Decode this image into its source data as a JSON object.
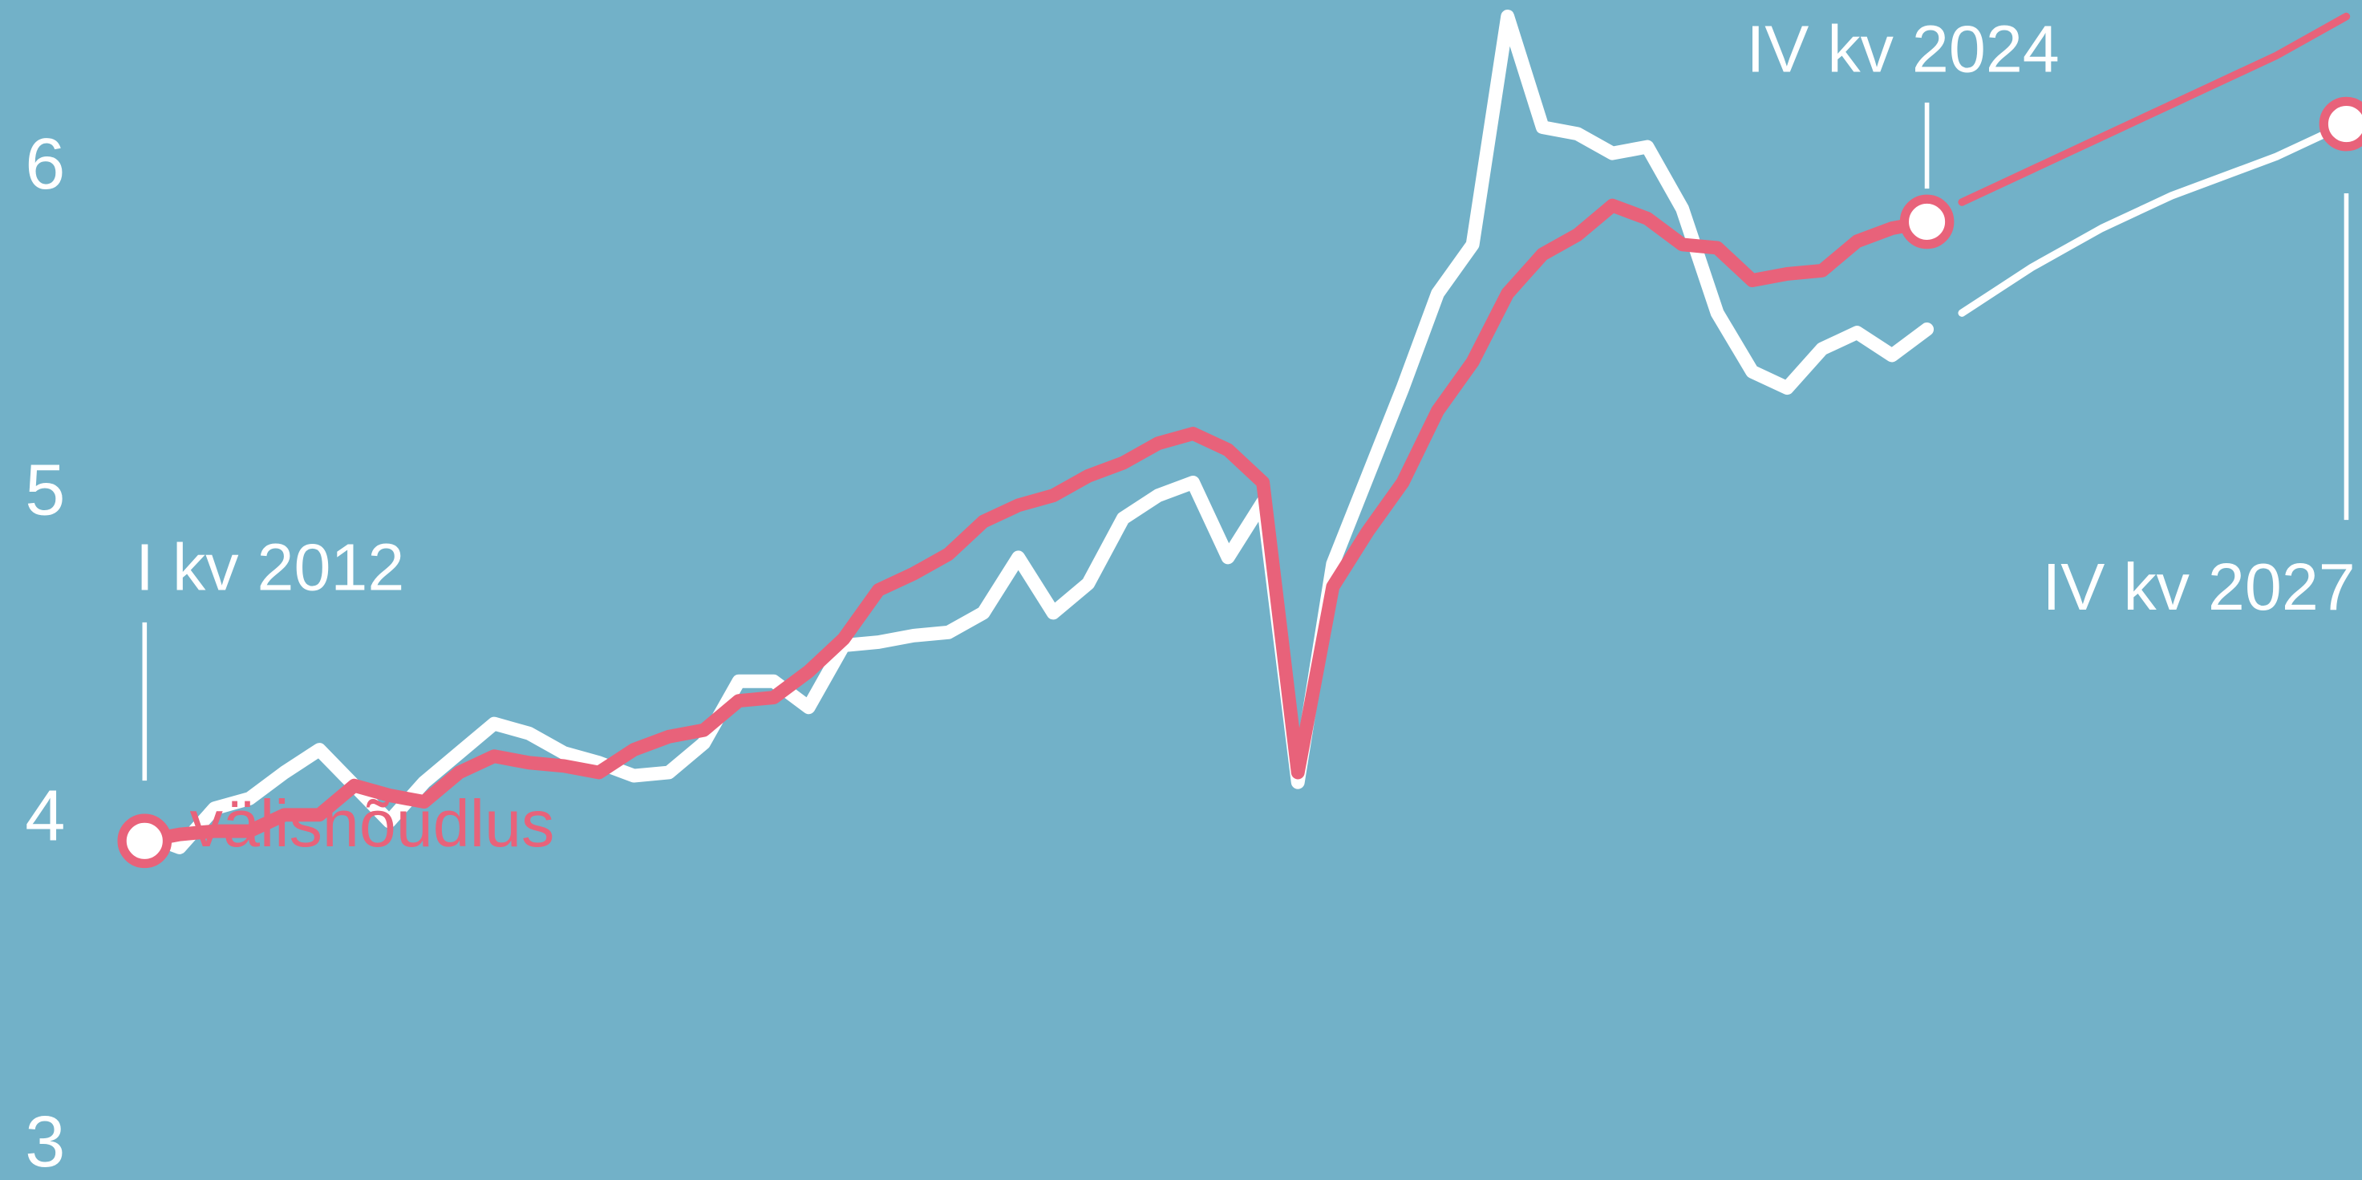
{
  "chart_data": {
    "type": "line",
    "categories": [
      "I kv 2012",
      null,
      null,
      null,
      null,
      null,
      null,
      null,
      null,
      null,
      null,
      null,
      null,
      null,
      null,
      null,
      null,
      null,
      null,
      null,
      null,
      null,
      null,
      null,
      null,
      null,
      null,
      null,
      null,
      null,
      null,
      null,
      null,
      null,
      null,
      null,
      null,
      null,
      null,
      null,
      null,
      null,
      null,
      null,
      null,
      null,
      null,
      null,
      null,
      null,
      null,
      "IV kv 2024",
      null,
      null,
      null,
      null,
      null,
      null,
      null,
      null,
      null,
      null,
      null,
      "IV kv 2027"
    ],
    "series": [
      {
        "color": "#ffffff",
        "values": [
          3.96,
          3.92,
          4.04,
          4.07,
          4.15,
          4.22,
          4.11,
          4.0,
          4.12,
          4.21,
          4.3,
          4.27,
          4.21,
          4.18,
          4.14,
          4.15,
          4.24,
          4.43,
          4.43,
          4.35,
          4.54,
          4.55,
          4.57,
          4.58,
          4.64,
          4.81,
          4.64,
          4.73,
          4.93,
          5.0,
          5.04,
          4.81,
          4.98,
          4.12,
          4.79,
          5.06,
          5.33,
          5.62,
          5.77,
          6.47,
          6.13,
          6.11,
          6.05,
          6.07,
          5.88,
          5.56,
          5.38,
          5.33,
          5.45,
          5.5,
          5.43,
          5.51,
          5.56,
          5.63,
          5.7,
          5.76,
          5.82,
          5.87,
          5.92,
          5.96,
          6.0,
          6.04,
          6.09,
          6.14
        ]
      },
      {
        "name": "välisnõudlus",
        "color": "#e8627a",
        "values": [
          3.94,
          3.96,
          3.97,
          3.97,
          4.02,
          4.02,
          4.11,
          4.08,
          4.06,
          4.15,
          4.2,
          4.18,
          4.17,
          4.15,
          4.22,
          4.26,
          4.28,
          4.37,
          4.38,
          4.46,
          4.56,
          4.71,
          4.76,
          4.82,
          4.92,
          4.97,
          5.0,
          5.06,
          5.1,
          5.16,
          5.19,
          5.14,
          5.04,
          4.15,
          4.72,
          4.89,
          5.04,
          5.26,
          5.41,
          5.62,
          5.74,
          5.8,
          5.89,
          5.85,
          5.77,
          5.76,
          5.66,
          5.68,
          5.69,
          5.78,
          5.82,
          5.84,
          5.9,
          5.95,
          6.0,
          6.05,
          6.1,
          6.15,
          6.2,
          6.25,
          6.3,
          6.35,
          6.41,
          6.47
        ]
      }
    ],
    "ylim": [
      2.9,
      6.52
    ],
    "yticks": [
      3,
      4,
      5,
      6
    ],
    "grid": false
  }
}
